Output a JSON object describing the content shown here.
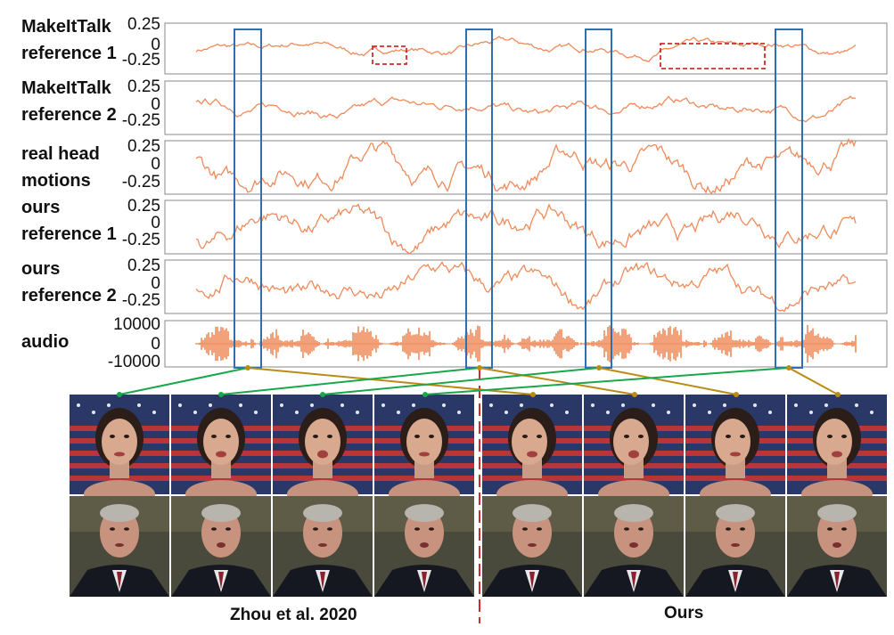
{
  "chart_data": {
    "type": "line",
    "rows": [
      {
        "label_line1": "MakeItTalk",
        "label_line2": "reference 1",
        "ticks": [
          "0.25",
          "0",
          "-0.25"
        ],
        "ylim": [
          -0.3,
          0.3
        ],
        "amp": 0.08
      },
      {
        "label_line1": "MakeItTalk",
        "label_line2": "reference 2",
        "ticks": [
          "0.25",
          "0",
          "-0.25"
        ],
        "ylim": [
          -0.3,
          0.3
        ],
        "amp": 0.1
      },
      {
        "label_line1": "real head",
        "label_line2": "motions",
        "ticks": [
          "0.25",
          "0",
          "-0.25"
        ],
        "ylim": [
          -0.3,
          0.3
        ],
        "amp": 0.22
      },
      {
        "label_line1": "ours",
        "label_line2": "reference 1",
        "ticks": [
          "0.25",
          "0",
          "-0.25"
        ],
        "ylim": [
          -0.3,
          0.3
        ],
        "amp": 0.22
      },
      {
        "label_line1": "ours",
        "label_line2": "reference 2",
        "ticks": [
          "0.25",
          "0",
          "-0.25"
        ],
        "ylim": [
          -0.3,
          0.3
        ],
        "amp": 0.2
      },
      {
        "label_line1": "audio",
        "label_line2": "",
        "ticks": [
          "10000",
          "0",
          "-10000"
        ],
        "ylim": [
          -13000,
          13000
        ],
        "amp": 0.9
      }
    ],
    "line_color": "#ef8a5a"
  },
  "captions": {
    "left": "Zhou et al. 2020",
    "right": "Ours"
  },
  "colors": {
    "highlight_box": "#2f6fb0",
    "dashed_box": "#d12a2a",
    "connector_green": "#1aa64a",
    "connector_gold": "#b98c18",
    "separator": "#d12a2a"
  }
}
